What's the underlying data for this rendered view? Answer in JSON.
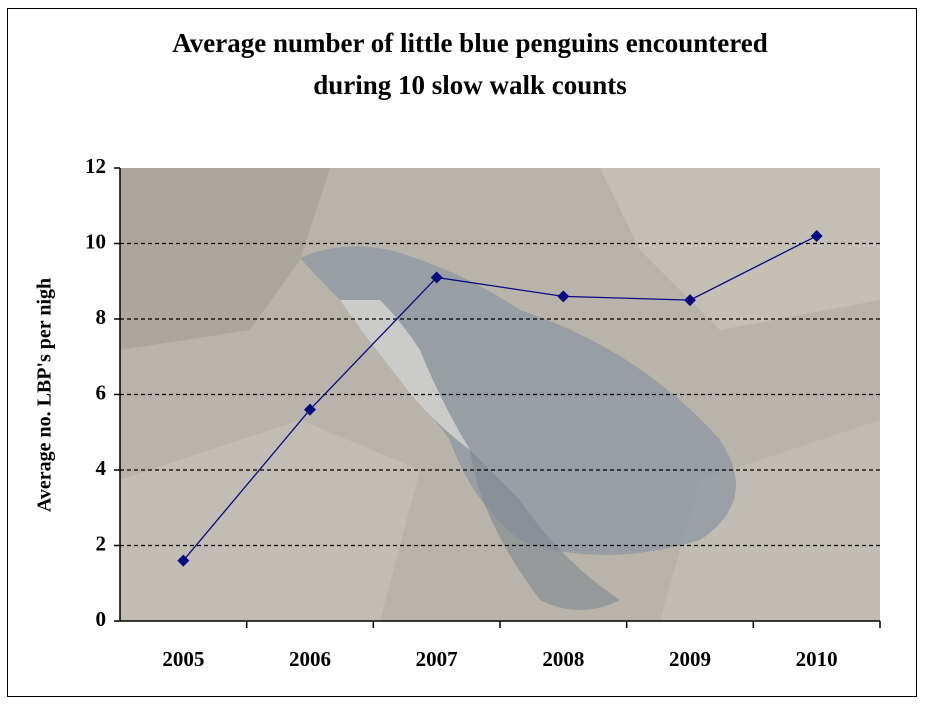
{
  "chart_data": {
    "type": "line",
    "title": [
      "Average number of little blue penguins encountered",
      "during 10 slow walk counts"
    ],
    "y_label": "Average no. LBP's per nigh",
    "categories": [
      "2005",
      "2006",
      "2007",
      "2008",
      "2009",
      "2010"
    ],
    "series": [
      {
        "name": "Average no. LBP's per night",
        "color": "#0a0a80",
        "values": [
          1.6,
          5.6,
          9.1,
          8.6,
          8.5,
          10.2
        ]
      }
    ],
    "ylim": [
      0,
      12
    ],
    "yticks": [
      0,
      2,
      4,
      6,
      8,
      10,
      12
    ],
    "grid": true,
    "legend": false
  }
}
